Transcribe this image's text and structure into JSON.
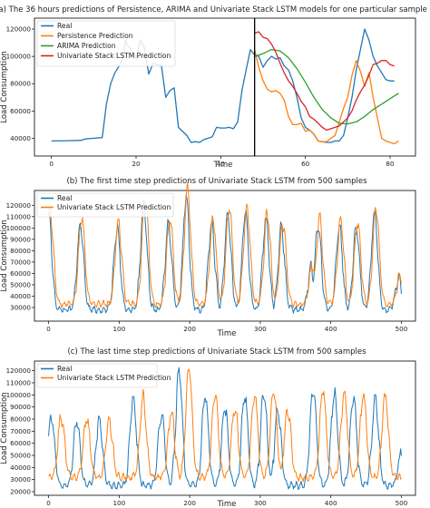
{
  "chart_data": [
    {
      "type": "line",
      "title": "(a) The 36 hours predictions of Persistence, ARIMA and Univariate Stack LSTM models for one particular sample",
      "xlabel": "Time",
      "ylabel": "Load Consumption",
      "xlim": [
        -4,
        86
      ],
      "ylim": [
        27000,
        128000
      ],
      "xticks": [
        0,
        20,
        40,
        60,
        80
      ],
      "yticks": [
        40000,
        60000,
        80000,
        100000,
        120000
      ],
      "vline_x": 48,
      "legend_position": "upper-left",
      "grid": false,
      "series": [
        {
          "name": "Real",
          "color": "#1f77b4",
          "points": [
            [
              0,
              38000
            ],
            [
              4,
              38200
            ],
            [
              7,
              38500
            ],
            [
              8,
              39500
            ],
            [
              10,
              40000
            ],
            [
              12,
              40500
            ],
            [
              13,
              65000
            ],
            [
              14,
              80000
            ],
            [
              15,
              88000
            ],
            [
              16,
              93000
            ],
            [
              17,
              100000
            ],
            [
              17.5,
              112000
            ],
            [
              18,
              108000
            ],
            [
              19,
              104000
            ],
            [
              20,
              98000
            ],
            [
              21,
              112000
            ],
            [
              22,
              106000
            ],
            [
              23,
              87000
            ],
            [
              24,
              95000
            ],
            [
              25,
              94000
            ],
            [
              26,
              93000
            ],
            [
              27,
              70000
            ],
            [
              28,
              75000
            ],
            [
              29,
              77000
            ],
            [
              30,
              48000
            ],
            [
              31,
              45000
            ],
            [
              32,
              42000
            ],
            [
              33,
              37000
            ],
            [
              34,
              37500
            ],
            [
              35,
              37000
            ],
            [
              36,
              39000
            ],
            [
              37,
              40000
            ],
            [
              38,
              41000
            ],
            [
              39,
              48000
            ],
            [
              40,
              47500
            ],
            [
              41,
              47500
            ],
            [
              42,
              48000
            ],
            [
              43,
              47000
            ],
            [
              44,
              52000
            ],
            [
              45,
              75000
            ],
            [
              46,
              90000
            ],
            [
              47,
              105000
            ],
            [
              48,
              101000
            ],
            [
              49,
              100000
            ],
            [
              50,
              92000
            ],
            [
              51,
              97000
            ],
            [
              52,
              100000
            ],
            [
              53,
              98000
            ],
            [
              54,
              99000
            ],
            [
              55,
              93000
            ],
            [
              56,
              90000
            ],
            [
              57,
              82000
            ],
            [
              58,
              70000
            ],
            [
              59,
              55000
            ],
            [
              60,
              48000
            ],
            [
              61,
              46000
            ],
            [
              62,
              43000
            ],
            [
              63,
              38000
            ],
            [
              64,
              37500
            ],
            [
              65,
              37000
            ],
            [
              66,
              37000
            ],
            [
              67,
              38000
            ],
            [
              68,
              38000
            ],
            [
              69,
              42000
            ],
            [
              70,
              55000
            ],
            [
              71,
              70000
            ],
            [
              72,
              90000
            ],
            [
              73,
              105000
            ],
            [
              74,
              120000
            ],
            [
              75,
              112000
            ],
            [
              76,
              100000
            ],
            [
              77,
              93000
            ],
            [
              78,
              88000
            ],
            [
              79,
              83000
            ],
            [
              80,
              82000
            ],
            [
              81,
              82000
            ]
          ]
        },
        {
          "name": "Persistence Prediction",
          "color": "#ff7f0e",
          "points": [
            [
              48,
              105000
            ],
            [
              49,
              92000
            ],
            [
              50,
              82000
            ],
            [
              51,
              76000
            ],
            [
              52,
              74000
            ],
            [
              53,
              75000
            ],
            [
              54,
              73000
            ],
            [
              55,
              68000
            ],
            [
              56,
              56000
            ],
            [
              57,
              50000
            ],
            [
              58,
              50000
            ],
            [
              59,
              51000
            ],
            [
              60,
              45000
            ],
            [
              61,
              46000
            ],
            [
              62,
              43000
            ],
            [
              63,
              38000
            ],
            [
              64,
              37500
            ],
            [
              65,
              37500
            ],
            [
              66,
              40000
            ],
            [
              67,
              42000
            ],
            [
              68,
              52000
            ],
            [
              69,
              62000
            ],
            [
              70,
              70000
            ],
            [
              71,
              86000
            ],
            [
              72,
              97000
            ],
            [
              73,
              89000
            ],
            [
              74,
              78000
            ],
            [
              75,
              88000
            ],
            [
              76,
              70000
            ],
            [
              77,
              55000
            ],
            [
              78,
              40000
            ],
            [
              79,
              38000
            ],
            [
              80,
              37000
            ],
            [
              81,
              36000
            ],
            [
              82,
              38000
            ]
          ]
        },
        {
          "name": "ARIMA Prediction",
          "color": "#2ca02c",
          "points": [
            [
              48,
              100000
            ],
            [
              50,
              102000
            ],
            [
              52,
              105000
            ],
            [
              54,
              104000
            ],
            [
              56,
              99000
            ],
            [
              58,
              91000
            ],
            [
              60,
              81000
            ],
            [
              62,
              70000
            ],
            [
              64,
              61000
            ],
            [
              66,
              55000
            ],
            [
              68,
              51000
            ],
            [
              70,
              50500
            ],
            [
              72,
              52000
            ],
            [
              74,
              56000
            ],
            [
              76,
              61000
            ],
            [
              78,
              65000
            ],
            [
              80,
              69000
            ],
            [
              82,
              73000
            ]
          ]
        },
        {
          "name": "Univariate Stack LSTM Prediction",
          "color": "#d62728",
          "points": [
            [
              48,
              117000
            ],
            [
              49,
              118000
            ],
            [
              50,
              114000
            ],
            [
              51,
              113000
            ],
            [
              52,
              109000
            ],
            [
              53,
              103000
            ],
            [
              54,
              95000
            ],
            [
              55,
              88000
            ],
            [
              56,
              82000
            ],
            [
              57,
              78000
            ],
            [
              58,
              73000
            ],
            [
              59,
              67000
            ],
            [
              60,
              63000
            ],
            [
              61,
              56000
            ],
            [
              62,
              54000
            ],
            [
              63,
              51000
            ],
            [
              64,
              48000
            ],
            [
              65,
              46000
            ],
            [
              66,
              47000
            ],
            [
              67,
              48000
            ],
            [
              68,
              49000
            ],
            [
              69,
              52000
            ],
            [
              70,
              55000
            ],
            [
              71,
              60000
            ],
            [
              72,
              68000
            ],
            [
              73,
              74000
            ],
            [
              74,
              79000
            ],
            [
              75,
              86000
            ],
            [
              76,
              94000
            ],
            [
              77,
              95000
            ],
            [
              78,
              97000
            ],
            [
              79,
              97000
            ],
            [
              80,
              94000
            ],
            [
              81,
              93000
            ]
          ]
        }
      ]
    },
    {
      "type": "line",
      "title": "(b) The first time step predictions of Univariate Stack LSTM from 500 samples",
      "xlabel": "Time",
      "ylabel": "Load Consumption",
      "xlim": [
        -20,
        520
      ],
      "ylim": [
        18000,
        133000
      ],
      "xticks": [
        0,
        100,
        200,
        300,
        400,
        500
      ],
      "yticks": [
        30000,
        40000,
        50000,
        60000,
        70000,
        80000,
        90000,
        100000,
        110000,
        120000
      ],
      "legend_position": "upper-left",
      "grid": false,
      "peaks": [
        [
          0,
          112000
        ],
        [
          45,
          103000
        ],
        [
          97,
          101000
        ],
        [
          135,
          121000
        ],
        [
          170,
          104000
        ],
        [
          195,
          128000
        ],
        [
          231,
          104000
        ],
        [
          254,
          112000
        ],
        [
          279,
          112000
        ],
        [
          308,
          108000
        ],
        [
          330,
          100000
        ],
        [
          372,
          65000
        ],
        [
          382,
          103000
        ],
        [
          412,
          102000
        ],
        [
          436,
          101000
        ],
        [
          462,
          112000
        ],
        [
          496,
          55000
        ]
      ],
      "series": [
        {
          "name": "Real",
          "color": "#1f77b4",
          "lag": 0,
          "amp": 1.0,
          "floor": 28000
        },
        {
          "name": "Univariate Stack LSTM Prediction",
          "color": "#ff7f0e",
          "lag": 2,
          "amp": 1.07,
          "floor": 33000
        }
      ]
    },
    {
      "type": "line",
      "title": "(c) The last time step predictions of Univariate Stack LSTM from 500 samples",
      "xlabel": "Time",
      "ylabel": "Load Consumption",
      "xlim": [
        -20,
        520
      ],
      "ylim": [
        17000,
        128000
      ],
      "xticks": [
        0,
        100,
        200,
        300,
        400,
        500
      ],
      "yticks": [
        20000,
        30000,
        40000,
        50000,
        60000,
        70000,
        80000,
        90000,
        100000,
        110000,
        120000
      ],
      "legend_position": "upper-left",
      "grid": false,
      "peaks": [
        [
          4,
          82000
        ],
        [
          40,
          80000
        ],
        [
          72,
          80000
        ],
        [
          120,
          98000
        ],
        [
          160,
          85000
        ],
        [
          185,
          121000
        ],
        [
          222,
          100000
        ],
        [
          250,
          89000
        ],
        [
          278,
          100000
        ],
        [
          305,
          103000
        ],
        [
          325,
          88000
        ],
        [
          375,
          104000
        ],
        [
          405,
          102000
        ],
        [
          432,
          99000
        ],
        [
          463,
          99000
        ],
        [
          500,
          52000
        ]
      ],
      "series": [
        {
          "name": "Real",
          "color": "#1f77b4",
          "lag": 0,
          "amp": 1.0,
          "floor": 25000
        },
        {
          "name": "Univariate Stack LSTM Prediction",
          "color": "#ff7f0e",
          "lag": 14,
          "amp": 1.0,
          "floor": 32000
        }
      ]
    }
  ]
}
